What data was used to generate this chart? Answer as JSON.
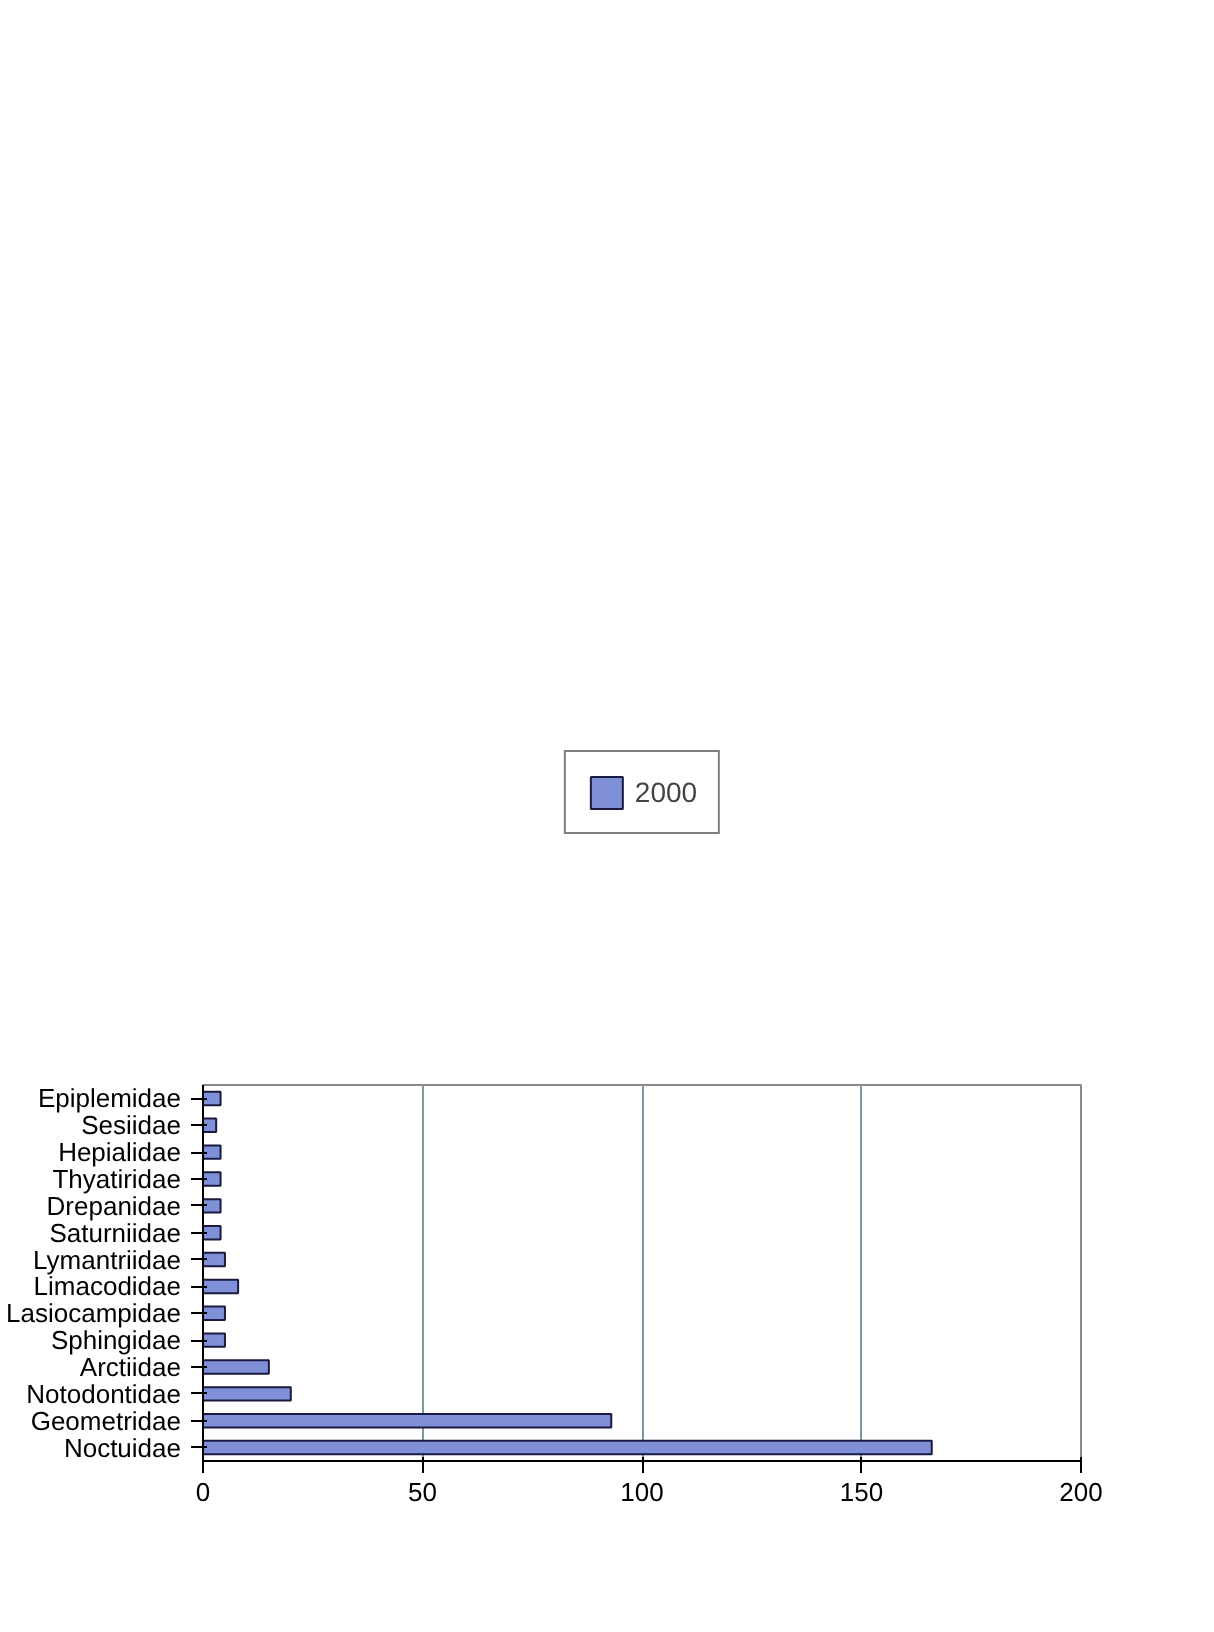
{
  "chart_data": {
    "type": "bar",
    "orientation": "horizontal",
    "categories": [
      "Epiplemidae",
      "Sesiidae",
      "Hepialidae",
      "Thyatiridae",
      "Drepanidae",
      "Saturniidae",
      "Lymantriidae",
      "Limacodidae",
      "Lasiocampidae",
      "Sphingidae",
      "Arctiidae",
      "Notodontidae",
      "Geometridae",
      "Noctuidae"
    ],
    "series": [
      {
        "name": "2000",
        "color": "#8090d8",
        "values": [
          4,
          3,
          4,
          4,
          4,
          4,
          5,
          8,
          5,
          5,
          15,
          20,
          93,
          166
        ]
      }
    ],
    "xlim": [
      0,
      200
    ],
    "xticks": [
      0,
      50,
      100,
      150,
      200
    ],
    "grid": "x",
    "legend": "top"
  }
}
